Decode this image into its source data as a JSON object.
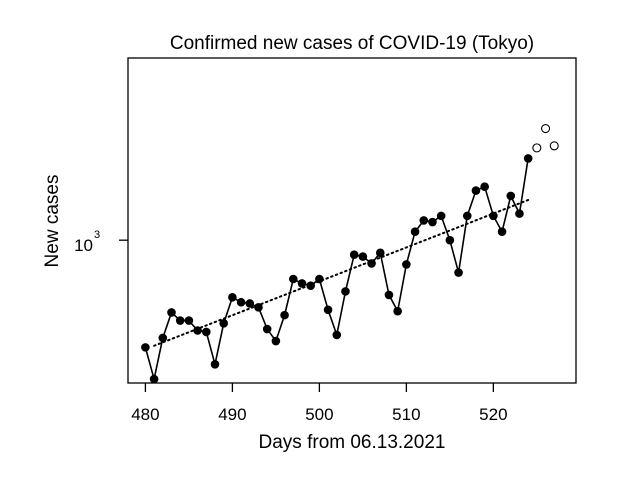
{
  "chart_data": {
    "type": "line",
    "title": "Confirmed new cases of COVID-19 (Tokyo)",
    "xlabel": "Days from 06.13.2021",
    "ylabel": "New cases",
    "x_ticks": [
      480,
      490,
      500,
      510,
      520
    ],
    "y_scale": "log",
    "y_tick": {
      "value": 1000,
      "base": "10",
      "exponent": "3"
    },
    "xlim": [
      478,
      529.5
    ],
    "ylim": [
      440,
      2850
    ],
    "grid": false,
    "series": [
      {
        "style": "solid-line-filled-markers",
        "x": [
          480,
          481,
          482,
          483,
          484,
          485,
          486,
          487,
          488,
          489,
          490,
          491,
          492,
          493,
          494,
          495,
          496,
          497,
          498,
          499,
          500,
          501,
          502,
          503,
          504,
          505,
          506,
          507,
          508,
          509,
          510,
          511,
          512,
          513,
          514,
          515,
          516,
          517,
          518,
          519,
          520,
          521,
          522,
          523,
          524
        ],
        "y": [
          540,
          450,
          570,
          660,
          630,
          630,
          595,
          590,
          490,
          620,
          720,
          700,
          695,
          680,
          600,
          560,
          650,
          800,
          780,
          770,
          800,
          670,
          580,
          745,
          920,
          910,
          875,
          930,
          730,
          665,
          870,
          1050,
          1120,
          1110,
          1150,
          1000,
          830,
          1150,
          1330,
          1360,
          1150,
          1050,
          1290,
          1165,
          1600
        ]
      },
      {
        "style": "hollow-markers",
        "x": [
          525,
          526,
          527
        ],
        "y": [
          1700,
          1900,
          1720
        ]
      },
      {
        "style": "dotted-trend",
        "x": [
          481,
          524
        ],
        "y": [
          545,
          1260
        ]
      }
    ]
  }
}
